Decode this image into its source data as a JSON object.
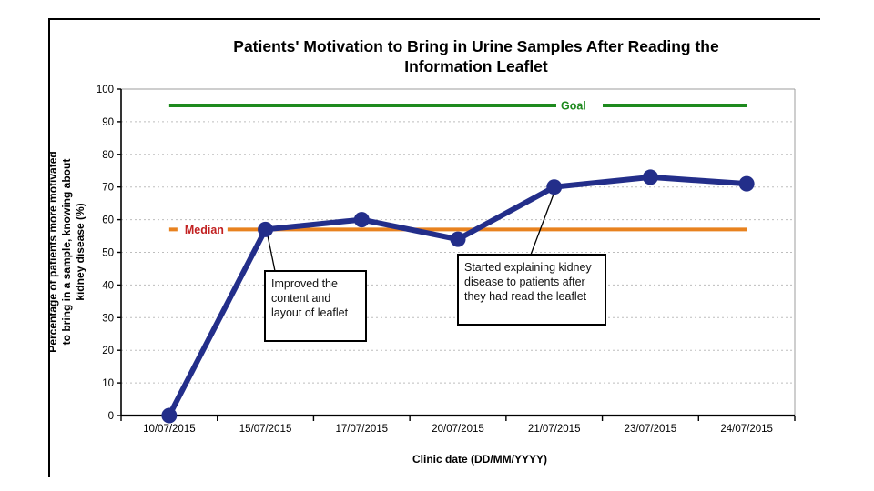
{
  "chart_data": {
    "type": "line",
    "title": "Patients' Motivation to Bring in Urine Samples After Reading the Information Leaflet",
    "title_lines": [
      "Patients' Motivation to Bring in Urine Samples After Reading the",
      "Information Leaflet"
    ],
    "xlabel": "Clinic date (DD/MM/YYYY)",
    "ylabel": "Percentage of patients more motivated to bring in a sample, knowing about kidney disease (%)",
    "ylabel_lines": [
      "Percentage of patients more motivated",
      "to bring in a sample, knowing about",
      "kidney disease (%)"
    ],
    "categories": [
      "10/07/2015",
      "15/07/2015",
      "17/07/2015",
      "20/07/2015",
      "21/07/2015",
      "23/07/2015",
      "24/07/2015"
    ],
    "series": [
      {
        "name": "Percentage of patients more motivated",
        "color": "#232e8a",
        "values": [
          0,
          57,
          60,
          54,
          70,
          73,
          71
        ]
      }
    ],
    "reference_lines": [
      {
        "name": "Goal",
        "value": 95,
        "line_color": "#1e8a1e",
        "label_color": "#1e8a1e"
      },
      {
        "name": "Median",
        "value": 57,
        "line_color": "#e8821f",
        "label_color": "#c22121"
      }
    ],
    "ylim": [
      0,
      100
    ],
    "ytick_step": 10,
    "grid": "horizontal-dotted",
    "legend_position": "none",
    "annotations": [
      {
        "text": "Improved the content and layout of leaflet",
        "attaches_to": "15/07/2015"
      },
      {
        "text": "Started explaining kidney disease to patients after they had read the leaflet",
        "attaches_to": "21/07/2015"
      }
    ]
  }
}
